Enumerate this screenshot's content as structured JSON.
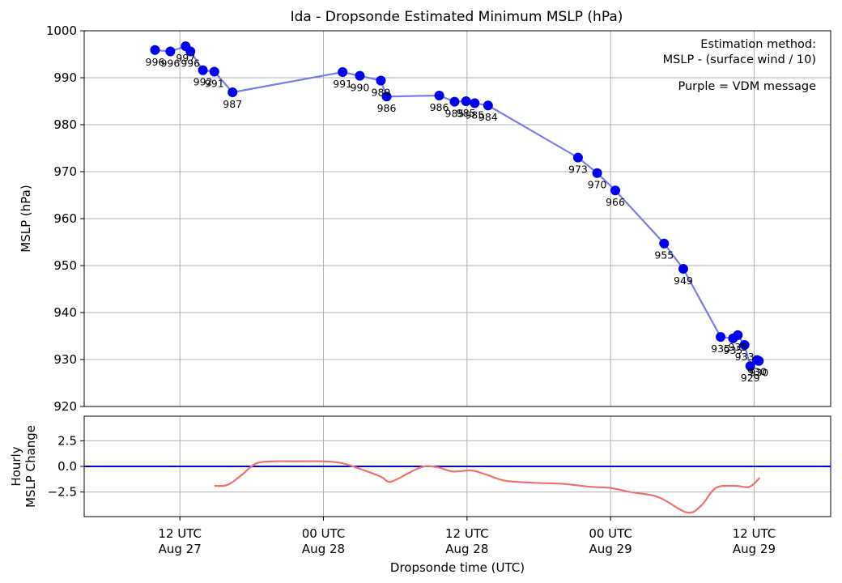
{
  "chart_data": [
    {
      "type": "line",
      "title": "Ida - Dropsonde Estimated Minimum MSLP (hPa)",
      "xlabel": "Dropsonde time (UTC)",
      "ylabel": "MSLP (hPa)",
      "ylim": [
        920,
        1000
      ],
      "yticks": [
        920,
        930,
        940,
        950,
        960,
        970,
        980,
        990,
        1000
      ],
      "xlim_hours": [
        -10,
        68
      ],
      "xticks": [
        {
          "hour": 0,
          "line1": "12 UTC",
          "line2": "Aug 27"
        },
        {
          "hour": 15,
          "line1": "00 UTC",
          "line2": "Aug 28"
        },
        {
          "hour": 30,
          "line1": "12 UTC",
          "line2": "Aug 28"
        },
        {
          "hour": 45,
          "line1": "00 UTC",
          "line2": "Aug 29"
        },
        {
          "hour": 60,
          "line1": "12 UTC",
          "line2": "Aug 29"
        }
      ],
      "grid": true,
      "annotations": [
        "Estimation method:",
        "MSLP - (surface wind / 10)",
        "Purple = VDM message"
      ],
      "series": [
        {
          "name": "Dropsonde MSLP",
          "color": "#0000ee",
          "line_color": "#7b7bea",
          "x_hours": [
            -2.6,
            -1.0,
            0.6,
            1.1,
            2.4,
            3.6,
            5.5,
            17.0,
            18.8,
            21.0,
            21.6,
            27.1,
            28.7,
            29.9,
            30.8,
            32.2,
            41.6,
            43.6,
            45.5,
            50.6,
            52.6,
            56.5,
            57.8,
            58.3,
            59.0,
            59.6,
            60.3,
            60.5
          ],
          "values": [
            995.9,
            995.6,
            996.7,
            995.6,
            991.6,
            991.3,
            986.9,
            991.2,
            990.4,
            989.4,
            986.0,
            986.2,
            984.9,
            985.0,
            984.6,
            984.1,
            973.0,
            969.7,
            966.0,
            954.7,
            949.3,
            934.8,
            934.5,
            935.2,
            933.1,
            928.6,
            929.9,
            929.7
          ],
          "labels": [
            "996",
            "996",
            "997",
            "996",
            "992",
            "991",
            "987",
            "991",
            "990",
            "989",
            "986",
            "986",
            "985",
            "985",
            "985",
            "984",
            "973",
            "970",
            "966",
            "955",
            "949",
            "935",
            "935",
            "935",
            "933",
            "929",
            "930",
            "930"
          ]
        }
      ]
    },
    {
      "type": "line",
      "ylabel_line1": "Hourly",
      "ylabel_line2": "MSLP Change",
      "ylim": [
        -4.9,
        4.9
      ],
      "yticks": [
        -2.5,
        0.0,
        2.5
      ],
      "ytick_labels": [
        "−2.5",
        "0.0",
        "2.5"
      ],
      "grid": true,
      "zero_line_color": "#0000ff",
      "series": [
        {
          "name": "Hourly MSLP Change",
          "color": "#ee7070",
          "x_hours": [
            3.6,
            5.0,
            6.5,
            8.0,
            10.0,
            12.0,
            15.0,
            17.0,
            19.0,
            21.0,
            22.0,
            24.0,
            25.5,
            27.0,
            28.5,
            30.5,
            32.0,
            34.0,
            37.0,
            40.0,
            43.0,
            45.0,
            47.0,
            50.0,
            53.0,
            54.5,
            56.0,
            58.0,
            59.5,
            60.6
          ],
          "values": [
            -1.9,
            -1.8,
            -0.8,
            0.3,
            0.5,
            0.5,
            0.5,
            0.3,
            -0.3,
            -1.0,
            -1.5,
            -0.6,
            0.0,
            -0.1,
            -0.5,
            -0.4,
            -0.8,
            -1.4,
            -1.6,
            -1.7,
            -2.0,
            -2.1,
            -2.5,
            -3.0,
            -4.5,
            -3.8,
            -2.1,
            -1.9,
            -2.0,
            -1.1
          ]
        }
      ]
    }
  ]
}
